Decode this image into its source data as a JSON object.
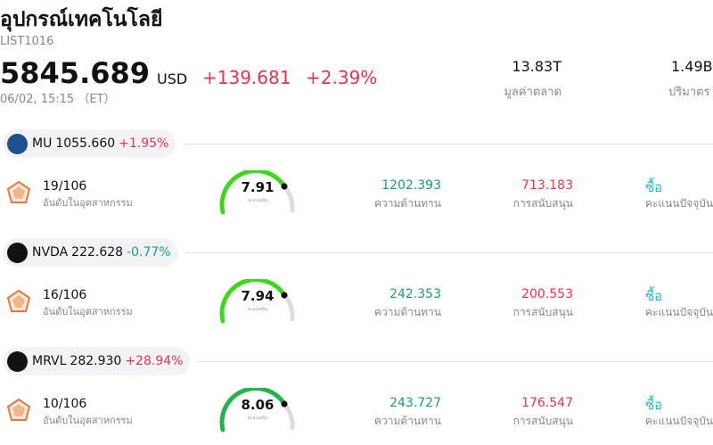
{
  "header": {
    "title": "อุปกรณ์เทคโนโลยี",
    "code": "LIST1016",
    "price": "5845.689",
    "currency": "USD",
    "change": "+139.681",
    "change_pct": "+2.39%",
    "time": "06/02, 15:15 （ET）",
    "market_cap": "13.83T",
    "market_cap_label": "มูลค่าตลาด",
    "volume": "1.49B",
    "volume_label": "ปริมาตร"
  },
  "stocks": [
    {
      "ticker": "MU",
      "price": "1055.660",
      "change": "+1.95%",
      "rank": "19/106",
      "rank_label": "อันดับในอุตสาหกรรม",
      "score": "7.91",
      "score_label": "คะแนนหุ้น",
      "resistance": "1202.393",
      "resistance_label": "ความต้านทาน",
      "support": "713.183",
      "support_label": "การสนับสนุน",
      "rating": "ซื้อ",
      "rating_label": "คะแนนปัจจุบัน"
    },
    {
      "ticker": "NVDA",
      "price": "222.628",
      "change": "-0.77%",
      "rank": "16/106",
      "rank_label": "อันดับในอุตสาหกรรม",
      "score": "7.94",
      "score_label": "คะแนนหุ้น",
      "resistance": "242.353",
      "resistance_label": "ความต้านทาน",
      "support": "200.553",
      "support_label": "การสนับสนุน",
      "rating": "ซื้อ",
      "rating_label": "คะแนนปัจจุบัน"
    },
    {
      "ticker": "MRVL",
      "price": "282.930",
      "change": "+28.94%",
      "rank": "10/106",
      "rank_label": "อันดับในอุตสาหกรรม",
      "score": "8.06",
      "score_label": "คะแนนหุ้น",
      "resistance": "243.727",
      "resistance_label": "ความต้านทาน",
      "support": "176.547",
      "support_label": "การสนับสนุน",
      "rating": "ซื้อ",
      "rating_label": "คะแนนปัจจุบัน"
    }
  ]
}
